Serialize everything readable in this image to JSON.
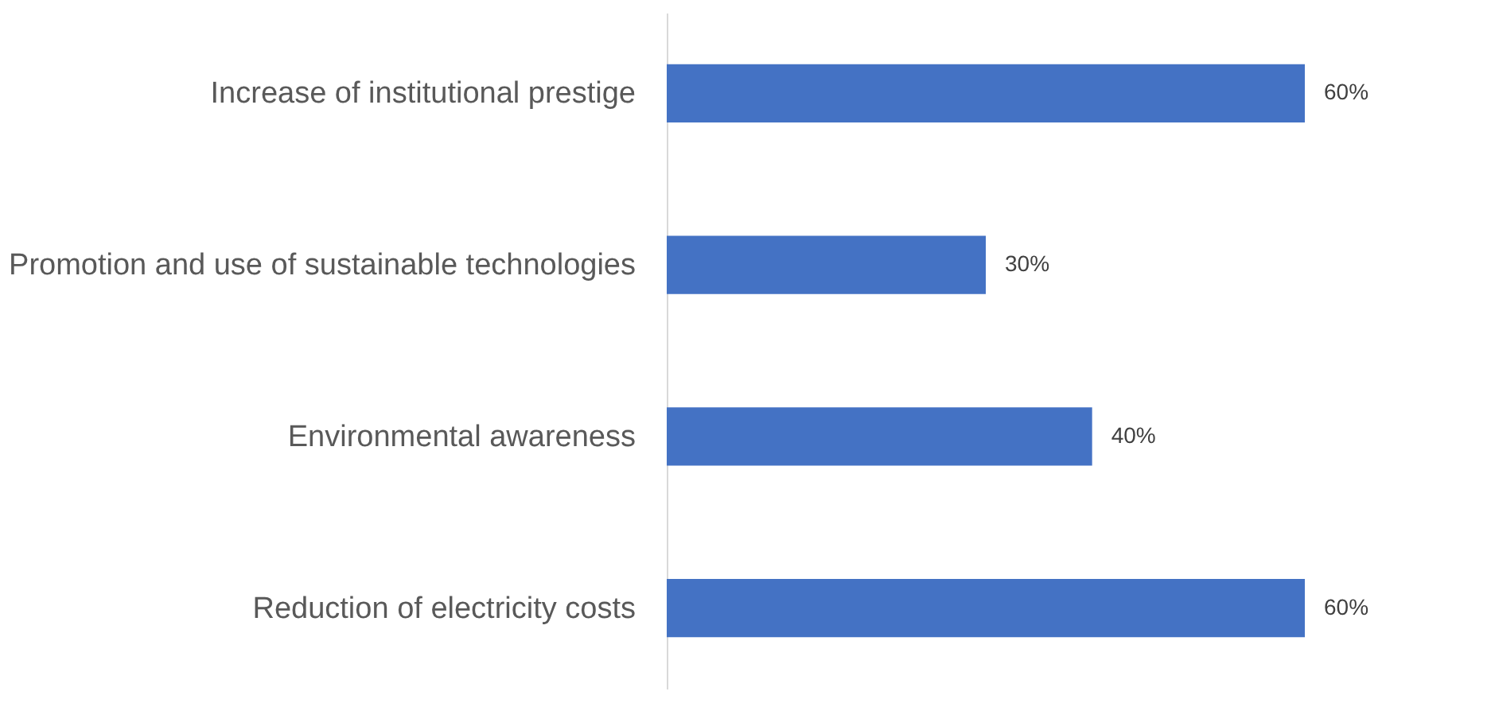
{
  "chart_data": {
    "type": "bar",
    "orientation": "horizontal",
    "categories": [
      "Increase of institutional prestige",
      "Promotion and use of sustainable technologies",
      "Environmental awareness",
      "Reduction of electricity costs"
    ],
    "values": [
      60,
      30,
      40,
      60
    ],
    "value_labels": [
      "60%",
      "30%",
      "40%",
      "60%"
    ],
    "color": "#4472c4",
    "grid": false
  }
}
